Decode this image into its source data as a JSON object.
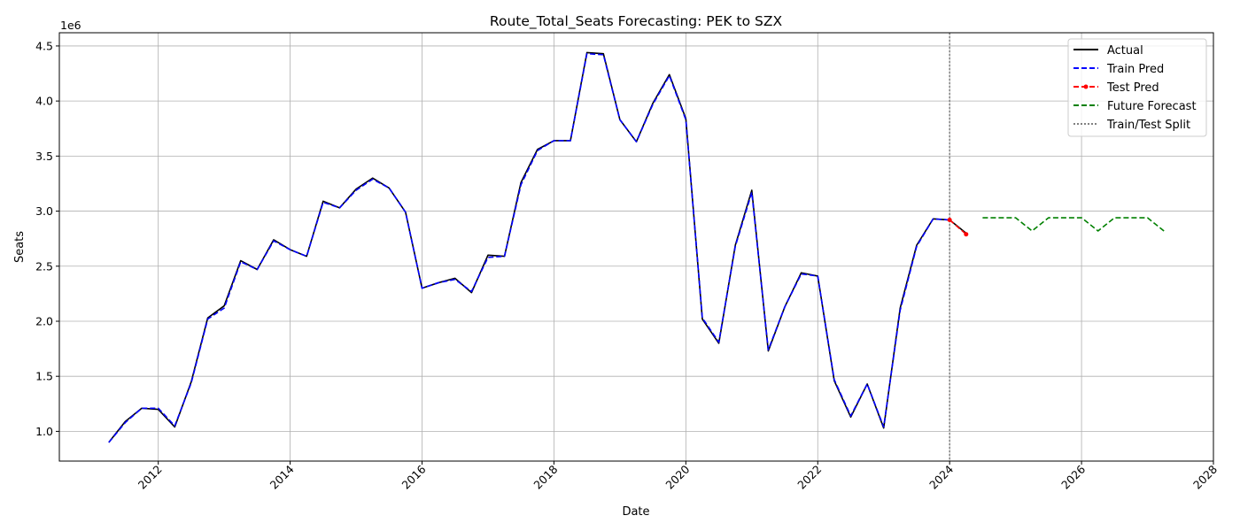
{
  "chart_data": {
    "type": "line",
    "title": "Route_Total_Seats Forecasting: PEK to SZX",
    "xlabel": "Date",
    "ylabel": "Seats",
    "y_offset_label": "1e6",
    "xlim": [
      2010.5,
      2028.0
    ],
    "ylim": [
      0.73,
      4.62
    ],
    "x_ticks": [
      2012,
      2014,
      2016,
      2018,
      2020,
      2022,
      2024,
      2026,
      2028
    ],
    "y_ticks": [
      1.0,
      1.5,
      2.0,
      2.5,
      3.0,
      3.5,
      4.0,
      4.5
    ],
    "y_tick_labels": [
      "1.0",
      "1.5",
      "2.0",
      "2.5",
      "3.0",
      "3.5",
      "4.0",
      "4.5"
    ],
    "grid": true,
    "legend_position": "top-right",
    "split_x": 2024.0,
    "series": [
      {
        "name": "Actual",
        "color": "#000000",
        "style": "solid",
        "x": [
          2011.25,
          2011.5,
          2011.75,
          2012.0,
          2012.25,
          2012.5,
          2012.75,
          2013.0,
          2013.25,
          2013.5,
          2013.75,
          2014.0,
          2014.25,
          2014.5,
          2014.75,
          2015.0,
          2015.25,
          2015.5,
          2015.75,
          2016.0,
          2016.25,
          2016.5,
          2016.75,
          2017.0,
          2017.25,
          2017.5,
          2017.75,
          2018.0,
          2018.25,
          2018.5,
          2018.75,
          2019.0,
          2019.25,
          2019.5,
          2019.75,
          2020.0,
          2020.25,
          2020.5,
          2020.75,
          2021.0,
          2021.25,
          2021.5,
          2021.75,
          2022.0,
          2022.25,
          2022.5,
          2022.75,
          2023.0,
          2023.25,
          2023.5,
          2023.75,
          2024.0,
          2024.25
        ],
        "y": [
          0.9,
          1.09,
          1.21,
          1.2,
          1.04,
          1.45,
          2.03,
          2.14,
          2.55,
          2.47,
          2.74,
          2.65,
          2.59,
          3.09,
          3.03,
          3.2,
          3.3,
          3.21,
          2.99,
          2.3,
          2.35,
          2.39,
          2.26,
          2.6,
          2.59,
          3.26,
          3.56,
          3.64,
          3.64,
          4.44,
          4.43,
          3.83,
          3.63,
          3.98,
          4.24,
          3.84,
          2.02,
          1.8,
          2.69,
          3.19,
          1.73,
          2.13,
          2.44,
          2.41,
          1.46,
          1.13,
          1.43,
          1.03,
          2.12,
          2.69,
          2.93,
          2.92,
          2.8
        ]
      },
      {
        "name": "Train Pred",
        "color": "#0000ff",
        "style": "dashed",
        "x": [
          2011.25,
          2011.5,
          2011.75,
          2012.0,
          2012.25,
          2012.5,
          2012.75,
          2013.0,
          2013.25,
          2013.5,
          2013.75,
          2014.0,
          2014.25,
          2014.5,
          2014.75,
          2015.0,
          2015.25,
          2015.5,
          2015.75,
          2016.0,
          2016.25,
          2016.5,
          2016.75,
          2017.0,
          2017.25,
          2017.5,
          2017.75,
          2018.0,
          2018.25,
          2018.5,
          2018.75,
          2019.0,
          2019.25,
          2019.5,
          2019.75,
          2020.0,
          2020.25,
          2020.5,
          2020.75,
          2021.0,
          2021.25,
          2021.5,
          2021.75,
          2022.0,
          2022.25,
          2022.5,
          2022.75,
          2023.0,
          2023.25,
          2023.5,
          2023.75,
          2024.0
        ],
        "y": [
          0.9,
          1.08,
          1.21,
          1.21,
          1.05,
          1.44,
          2.02,
          2.12,
          2.54,
          2.47,
          2.73,
          2.65,
          2.59,
          3.08,
          3.03,
          3.19,
          3.29,
          3.21,
          2.99,
          2.3,
          2.35,
          2.38,
          2.27,
          2.58,
          2.59,
          3.24,
          3.55,
          3.64,
          3.64,
          4.43,
          4.42,
          3.83,
          3.63,
          3.97,
          4.23,
          3.83,
          2.03,
          1.81,
          2.68,
          3.17,
          1.74,
          2.13,
          2.43,
          2.41,
          1.47,
          1.14,
          1.43,
          1.04,
          2.1,
          2.68,
          2.93,
          2.92
        ]
      },
      {
        "name": "Test Pred",
        "color": "#ff0000",
        "style": "dashed-marker",
        "x": [
          2024.0,
          2024.25
        ],
        "y": [
          2.92,
          2.79
        ]
      },
      {
        "name": "Future Forecast",
        "color": "#008000",
        "style": "dashed",
        "x": [
          2024.5,
          2024.75,
          2025.0,
          2025.25,
          2025.5,
          2025.75,
          2026.0,
          2026.25,
          2026.5,
          2026.75,
          2027.0,
          2027.25
        ],
        "y": [
          2.94,
          2.94,
          2.94,
          2.82,
          2.94,
          2.94,
          2.94,
          2.82,
          2.94,
          2.94,
          2.94,
          2.82
        ]
      },
      {
        "name": "Train/Test Split",
        "color": "#808080",
        "style": "dotted"
      }
    ]
  }
}
